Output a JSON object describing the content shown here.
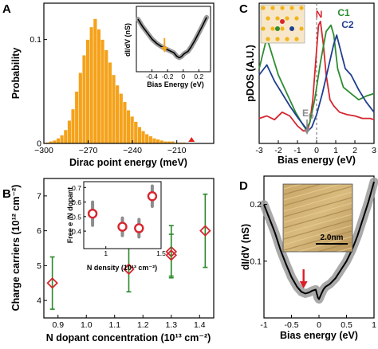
{
  "panels": {
    "A": {
      "letter": "A"
    },
    "B": {
      "letter": "B"
    },
    "C": {
      "letter": "C"
    },
    "D": {
      "letter": "D"
    }
  },
  "chart_data": [
    {
      "panel": "A",
      "type": "bar",
      "xlabel": "Dirac point energy (meV)",
      "ylabel": "Probability",
      "xlim": [
        -300,
        -185
      ],
      "ylim": [
        0,
        0.135
      ],
      "xticks": [
        "−300",
        "−270",
        "−240",
        "−210"
      ],
      "yticks": [
        "0",
        "0.1"
      ],
      "bar_color": "#f5a21b",
      "bin_width": 2.5,
      "bins": [
        -299,
        -296.5,
        -294,
        -291.5,
        -289,
        -286.5,
        -284,
        -281.5,
        -279,
        -276.5,
        -274,
        -271.5,
        -269,
        -266.5,
        -264,
        -261.5,
        -259,
        -256.5,
        -254,
        -251.5,
        -249,
        -246.5,
        -244,
        -241.5,
        -239,
        -236.5,
        -234,
        -231.5,
        -229,
        -226.5,
        -224,
        -221.5,
        -219,
        -216.5,
        -214,
        -211.5,
        -209,
        -206.5,
        -204,
        -201.5
      ],
      "values": [
        0.001,
        0.002,
        0.003,
        0.005,
        0.008,
        0.013,
        0.022,
        0.033,
        0.05,
        0.068,
        0.085,
        0.1,
        0.112,
        0.12,
        0.11,
        0.1,
        0.09,
        0.078,
        0.066,
        0.056,
        0.048,
        0.04,
        0.032,
        0.026,
        0.021,
        0.016,
        0.012,
        0.009,
        0.007,
        0.005,
        0.004,
        0.003,
        0.002,
        0.002,
        0.002,
        0.001,
        0.001,
        0.001,
        0.0005,
        0.0005
      ],
      "marker": {
        "x": -200,
        "y": 0.0015,
        "shape": "triangle",
        "color": "#e8201c"
      },
      "inset": {
        "type": "line",
        "xlabel": "Bias Energy (eV)",
        "ylabel": "dI/dV (nS)",
        "xlim": [
          -0.6,
          0.35
        ],
        "xticks": [
          "-0.4",
          "-0.2",
          "0",
          "0.2"
        ],
        "x": [
          -0.58,
          -0.52,
          -0.46,
          -0.4,
          -0.34,
          -0.28,
          -0.22,
          -0.17,
          -0.12,
          -0.08,
          -0.05,
          -0.02,
          0.0,
          0.03,
          0.06,
          0.1,
          0.15,
          0.2,
          0.25,
          0.3
        ],
        "y": [
          0.82,
          0.7,
          0.6,
          0.5,
          0.43,
          0.38,
          0.34,
          0.31,
          0.28,
          0.22,
          0.2,
          0.22,
          0.25,
          0.28,
          0.3,
          0.37,
          0.48,
          0.6,
          0.72,
          0.85
        ],
        "arrow": {
          "x": -0.24,
          "color": "#f5a21b"
        }
      }
    },
    {
      "panel": "B",
      "type": "scatter",
      "xlabel": "N dopant concentration (10¹³ cm⁻²)",
      "ylabel": "Charge carriers (10¹² cm⁻²)",
      "xlim": [
        0.85,
        1.45
      ],
      "ylim": [
        3.5,
        7.5
      ],
      "xticks": [
        "0.9",
        "1.0",
        "1.1",
        "1.2",
        "1.3",
        "1.4"
      ],
      "yticks": [
        "4",
        "5",
        "6",
        "7"
      ],
      "x": [
        0.88,
        1.15,
        1.3,
        1.3,
        1.42
      ],
      "y": [
        4.5,
        4.9,
        5.4,
        5.3,
        6.0
      ],
      "yerr": [
        0.75,
        0.65,
        0.75,
        0.6,
        1.05
      ],
      "marker_color": "#d7262e",
      "errorbar_color": "#2b8a2b",
      "inset": {
        "type": "scatter",
        "xlabel": "N density (10¹³ cm⁻²)",
        "ylabel": "Free e /N dopant",
        "xlim": [
          0.8,
          1.5
        ],
        "ylim": [
          0.28,
          0.74
        ],
        "xticks": [
          "1",
          "1.5"
        ],
        "yticks": [
          "0.4",
          "0.5",
          "0.6",
          "0.7"
        ],
        "x": [
          0.88,
          1.15,
          1.3,
          1.42
        ],
        "y": [
          0.52,
          0.43,
          0.42,
          0.64
        ],
        "yerr": [
          0.08,
          0.06,
          0.06,
          0.07
        ]
      }
    },
    {
      "panel": "C",
      "type": "line",
      "xlabel": "Bias energy (eV)",
      "ylabel": "pDOS (A.U.)",
      "xlim": [
        -3,
        3
      ],
      "ylim": [
        0,
        1
      ],
      "xticks": [
        "-3",
        "-2",
        "-1",
        "0",
        "1",
        "2",
        "3"
      ],
      "dashed_line_x": 0,
      "annotation": {
        "base": "E",
        "sub": "D",
        "x": -0.5,
        "color": "#8a8a8a"
      },
      "series": [
        {
          "name": "N",
          "color": "#d6262e",
          "x": [
            -3,
            -2.6,
            -2.2,
            -1.8,
            -1.4,
            -1.0,
            -0.7,
            -0.5,
            -0.35,
            -0.2,
            -0.05,
            0.1,
            0.2,
            0.35,
            0.5,
            0.7,
            0.9,
            1.2,
            1.6,
            2.0,
            2.4,
            2.8,
            3.0
          ],
          "y": [
            0.15,
            0.17,
            0.14,
            0.2,
            0.17,
            0.09,
            0.05,
            0.05,
            0.12,
            0.3,
            0.6,
            0.9,
            0.93,
            0.75,
            0.5,
            0.3,
            0.25,
            0.2,
            0.18,
            0.17,
            0.15,
            0.15,
            0.14
          ]
        },
        {
          "name": "C1",
          "color": "#2e8c30",
          "x": [
            -3,
            -2.6,
            -2.3,
            -2.0,
            -1.7,
            -1.4,
            -1.1,
            -0.8,
            -0.55,
            -0.35,
            -0.1,
            0.2,
            0.5,
            0.75,
            0.9,
            1.1,
            1.4,
            1.8,
            2.2,
            2.6,
            3.0
          ],
          "y": [
            0.55,
            0.8,
            0.65,
            0.5,
            0.4,
            0.3,
            0.2,
            0.12,
            0.06,
            0.12,
            0.3,
            0.6,
            0.85,
            0.9,
            0.82,
            0.55,
            0.4,
            0.35,
            0.3,
            0.33,
            0.35
          ]
        },
        {
          "name": "C2",
          "color": "#1f3e8f",
          "x": [
            -3,
            -2.6,
            -2.2,
            -1.8,
            -1.4,
            -1.0,
            -0.7,
            -0.45,
            -0.25,
            0.0,
            0.3,
            0.6,
            0.9,
            1.05,
            1.25,
            1.5,
            1.8,
            2.2,
            2.6,
            3.0
          ],
          "y": [
            0.5,
            0.58,
            0.45,
            0.35,
            0.25,
            0.16,
            0.1,
            0.05,
            0.08,
            0.18,
            0.35,
            0.55,
            0.75,
            0.82,
            0.7,
            0.55,
            0.5,
            0.38,
            0.28,
            0.2
          ]
        }
      ]
    },
    {
      "panel": "D",
      "type": "line",
      "xlabel": "Bias energy (eV)",
      "ylabel": "dI/dV (nS)",
      "xlim": [
        -1,
        1
      ],
      "ylim": [
        0,
        0.25
      ],
      "xticks": [
        "-1",
        "-0.5",
        "0",
        "0.5",
        "1"
      ],
      "yticks": [
        "0.1",
        "0.2"
      ],
      "line_color": "#000000",
      "band_color": "#9a9a9a",
      "x": [
        -1.0,
        -0.9,
        -0.8,
        -0.7,
        -0.6,
        -0.5,
        -0.4,
        -0.32,
        -0.25,
        -0.18,
        -0.12,
        -0.06,
        -0.02,
        0.0,
        0.04,
        0.08,
        0.12,
        0.2,
        0.3,
        0.4,
        0.5,
        0.6,
        0.7,
        0.8,
        0.9,
        1.0
      ],
      "y": [
        0.2,
        0.175,
        0.15,
        0.12,
        0.095,
        0.072,
        0.055,
        0.046,
        0.043,
        0.045,
        0.048,
        0.05,
        0.036,
        0.033,
        0.042,
        0.05,
        0.055,
        0.06,
        0.07,
        0.085,
        0.1,
        0.12,
        0.145,
        0.175,
        0.205,
        0.24
      ],
      "arrow": {
        "x": -0.28,
        "color": "#d81f2a"
      },
      "inset": {
        "type": "image",
        "scale_bar": "2.0nm"
      }
    }
  ]
}
